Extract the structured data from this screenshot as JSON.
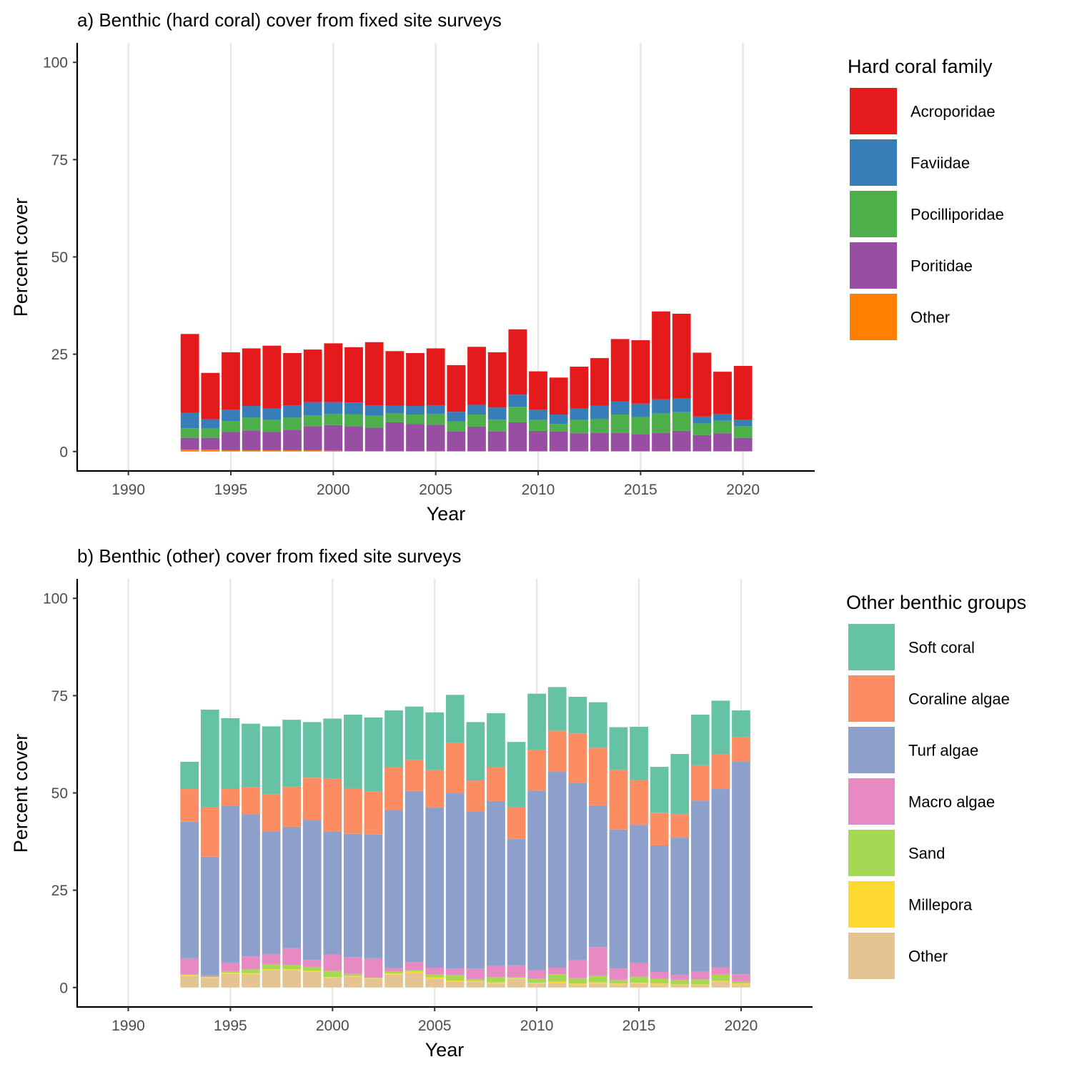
{
  "chart_data": [
    {
      "type": "bar",
      "stacked": true,
      "title": "a) Benthic (hard coral) cover from fixed site surveys",
      "xlabel": "Year",
      "ylabel": "Percent cover",
      "xlim": [
        1987.5,
        2023.5
      ],
      "ylim": [
        -5,
        105
      ],
      "x_ticks": [
        1990,
        1995,
        2000,
        2005,
        2010,
        2015,
        2020
      ],
      "y_ticks": [
        0,
        25,
        50,
        75,
        100
      ],
      "grid": "vertical major lines",
      "legend_title": "Hard coral family",
      "legend_position": "right",
      "x": [
        1993,
        1994,
        1995,
        1996,
        1997,
        1998,
        1999,
        2000,
        2001,
        2002,
        2003,
        2004,
        2005,
        2006,
        2007,
        2008,
        2009,
        2010,
        2011,
        2012,
        2013,
        2014,
        2015,
        2016,
        2017,
        2018,
        2019,
        2020
      ],
      "series": [
        {
          "name": "Other",
          "color": "#FF7F00",
          "values": [
            0.5,
            0.5,
            0.3,
            0.3,
            0.3,
            0.3,
            0.3,
            0.2,
            0.1,
            0.1,
            0.1,
            0.1,
            0.1,
            0.1,
            0.1,
            0.1,
            0.1,
            0.1,
            0.1,
            0.1,
            0.1,
            0.1,
            0.1,
            0.1,
            0.1,
            0.1,
            0.1,
            0.1
          ]
        },
        {
          "name": "Poritidae",
          "color": "#984EA3",
          "values": [
            3.0,
            3.0,
            4.7,
            5.1,
            4.7,
            5.3,
            6.2,
            6.6,
            6.4,
            6.0,
            7.4,
            7.0,
            6.8,
            5.0,
            6.3,
            5.0,
            7.4,
            5.2,
            5.0,
            4.6,
            4.7,
            4.7,
            4.4,
            4.7,
            5.2,
            4.1,
            4.6,
            3.4
          ]
        },
        {
          "name": "Pocilliporidae",
          "color": "#4DAF4A",
          "values": [
            2.5,
            2.4,
            2.8,
            3.3,
            3.1,
            3.1,
            2.8,
            2.9,
            3.1,
            3.1,
            2.3,
            2.4,
            2.8,
            2.6,
            3.1,
            3.1,
            4.0,
            2.8,
            2.0,
            3.4,
            3.5,
            4.7,
            4.3,
            5.0,
            4.8,
            3.0,
            3.2,
            3.0
          ]
        },
        {
          "name": "Faviidae",
          "color": "#377EB8",
          "values": [
            3.9,
            2.4,
            3.0,
            3.0,
            2.9,
            3.2,
            3.4,
            3.0,
            3.0,
            2.7,
            2.0,
            2.2,
            2.2,
            2.5,
            2.5,
            3.1,
            3.1,
            2.7,
            2.4,
            2.9,
            3.5,
            3.4,
            3.5,
            3.6,
            3.5,
            1.8,
            1.8,
            1.6
          ]
        },
        {
          "name": "Acroporidae",
          "color": "#E41A1C",
          "values": [
            20.3,
            11.9,
            14.7,
            14.8,
            16.2,
            13.4,
            13.5,
            15.1,
            14.2,
            16.2,
            14.0,
            13.6,
            14.6,
            12.0,
            14.9,
            14.2,
            16.8,
            9.8,
            9.5,
            10.8,
            12.2,
            16.0,
            16.3,
            22.6,
            21.8,
            16.4,
            10.8,
            13.9
          ]
        }
      ]
    },
    {
      "type": "bar",
      "stacked": true,
      "title": "b) Benthic (other) cover from fixed site surveys",
      "xlabel": "Year",
      "ylabel": "Percent cover",
      "xlim": [
        1987.5,
        2023.5
      ],
      "ylim": [
        -5,
        105
      ],
      "x_ticks": [
        1990,
        1995,
        2000,
        2005,
        2010,
        2015,
        2020
      ],
      "y_ticks": [
        0,
        25,
        50,
        75,
        100
      ],
      "grid": "vertical major lines",
      "legend_title": "Other benthic groups",
      "legend_position": "right",
      "x": [
        1993,
        1994,
        1995,
        1996,
        1997,
        1998,
        1999,
        2000,
        2001,
        2002,
        2003,
        2004,
        2005,
        2006,
        2007,
        2008,
        2009,
        2010,
        2011,
        2012,
        2013,
        2014,
        2015,
        2016,
        2017,
        2018,
        2019,
        2020
      ],
      "series": [
        {
          "name": "Other",
          "color": "#E5C494",
          "values": [
            3.0,
            2.5,
            3.5,
            3.5,
            4.5,
            4.5,
            4.0,
            2.5,
            2.8,
            2.2,
            3.3,
            3.8,
            2.3,
            1.6,
            1.5,
            1.0,
            2.2,
            1.0,
            1.2,
            0.8,
            1.0,
            0.8,
            1.0,
            0.8,
            0.6,
            0.6,
            1.5,
            0.8
          ]
        },
        {
          "name": "Millepora",
          "color": "#FFD92F",
          "values": [
            0.2,
            0.2,
            0.3,
            0.2,
            0.2,
            0.2,
            0.3,
            0.2,
            0.2,
            0.2,
            0.3,
            0.3,
            0.3,
            0.2,
            0.2,
            0.3,
            0.2,
            0.2,
            0.3,
            0.2,
            0.3,
            0.2,
            0.2,
            0.2,
            0.2,
            0.2,
            0.2,
            0.2
          ]
        },
        {
          "name": "Sand",
          "color": "#A6D854",
          "values": [
            0.1,
            0.1,
            0.4,
            1.0,
            1.2,
            1.1,
            1.0,
            1.6,
            0.5,
            0.1,
            0.5,
            0.3,
            0.7,
            1.4,
            0.4,
            1.4,
            0.3,
            1.0,
            1.9,
            1.4,
            1.7,
            1.0,
            1.6,
            1.2,
            1.2,
            1.3,
            1.6,
            0.5
          ]
        },
        {
          "name": "Macro algae",
          "color": "#E78AC3",
          "values": [
            4.2,
            0.3,
            2.2,
            3.3,
            2.7,
            4.3,
            1.8,
            4.2,
            4.3,
            5.0,
            0.9,
            2.1,
            1.8,
            1.7,
            2.8,
            2.8,
            3.0,
            2.2,
            1.7,
            4.6,
            7.4,
            2.9,
            3.5,
            1.8,
            1.2,
            2.0,
            1.9,
            1.9
          ]
        },
        {
          "name": "Turf algae",
          "color": "#8DA0CB",
          "values": [
            35.1,
            30.5,
            40.2,
            36.5,
            31.5,
            31.2,
            36.0,
            31.5,
            31.7,
            31.9,
            40.5,
            44.0,
            41.2,
            45.0,
            40.4,
            42.4,
            32.5,
            46.2,
            50.3,
            45.6,
            36.4,
            35.7,
            35.5,
            32.5,
            35.3,
            43.9,
            45.8,
            54.7
          ]
        },
        {
          "name": "Coraline algae",
          "color": "#FC8D62",
          "values": [
            8.4,
            12.8,
            4.4,
            7.0,
            9.5,
            10.3,
            10.8,
            13.6,
            11.7,
            11.0,
            11.2,
            7.9,
            9.6,
            12.9,
            7.9,
            8.8,
            8.1,
            10.5,
            10.6,
            12.7,
            14.8,
            15.3,
            11.5,
            8.4,
            6.1,
            9.1,
            9.0,
            6.3
          ]
        },
        {
          "name": "Soft coral",
          "color": "#66C2A5",
          "values": [
            7.0,
            25.0,
            18.2,
            16.3,
            17.5,
            17.2,
            14.3,
            15.5,
            18.9,
            19.0,
            14.5,
            13.8,
            14.8,
            12.4,
            15.0,
            13.8,
            16.8,
            14.4,
            11.2,
            9.4,
            11.7,
            11.0,
            13.7,
            11.8,
            15.4,
            13.0,
            13.7,
            6.8
          ]
        }
      ]
    }
  ]
}
